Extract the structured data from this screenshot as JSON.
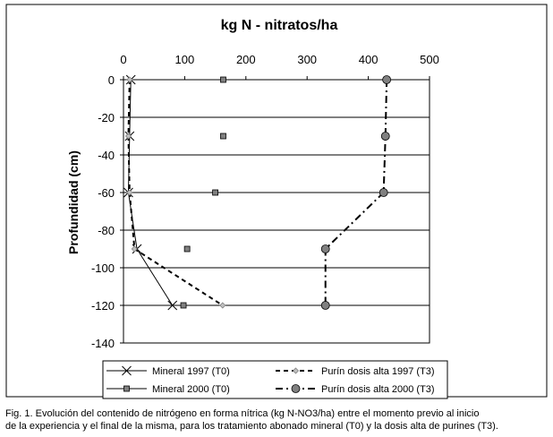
{
  "chart_data": {
    "type": "line",
    "title": "kg N - nitratos/ha",
    "xlabel": "",
    "ylabel": "Profundidad (cm)",
    "xlim": [
      0,
      500
    ],
    "ylim": [
      -140,
      0
    ],
    "x_ticks": [
      0,
      100,
      200,
      300,
      400,
      500
    ],
    "y_ticks": [
      0,
      -20,
      -40,
      -60,
      -80,
      -100,
      -120,
      -140
    ],
    "x_axis_position": "top",
    "grid": "horizontal",
    "legend_position": "bottom",
    "series": [
      {
        "name": "Mineral 1997 (T0)",
        "style": "solid-thin",
        "marker": "x",
        "color": "#000000",
        "points": [
          [
            12,
            0
          ],
          [
            10,
            -30
          ],
          [
            8,
            -60
          ],
          [
            22,
            -90
          ],
          [
            80,
            -120
          ]
        ]
      },
      {
        "name": "Mineral 2000 (T0)",
        "style": "markers-only",
        "marker": "square",
        "color": "#808080",
        "points": [
          [
            163,
            0
          ],
          [
            163,
            -30
          ],
          [
            150,
            -60
          ],
          [
            104,
            -90
          ],
          [
            98,
            -120
          ]
        ]
      },
      {
        "name": "Purín dosis alta 1997 (T3)",
        "style": "dashed",
        "marker": "diamond",
        "color": "#c0c0c0",
        "points": [
          [
            10,
            0
          ],
          [
            8,
            -30
          ],
          [
            10,
            -60
          ],
          [
            18,
            -90
          ],
          [
            162,
            -120
          ]
        ]
      },
      {
        "name": "Purín dosis alta 2000 (T3)",
        "style": "dash-dot",
        "marker": "circle",
        "color": "#808080",
        "points": [
          [
            430,
            0
          ],
          [
            428,
            -30
          ],
          [
            425,
            -60
          ],
          [
            330,
            -90
          ],
          [
            330,
            -120
          ]
        ]
      }
    ]
  },
  "caption": {
    "line1": "Fig. 1. Evolución del contenido de nitrógeno en forma nítrica (kg N-NO3/ha) entre el momento previo al inicio",
    "line2": "de la experiencia y el final de la misma, para los tratamiento abonado mineral (T0) y la dosis alta de purines (T3)."
  }
}
